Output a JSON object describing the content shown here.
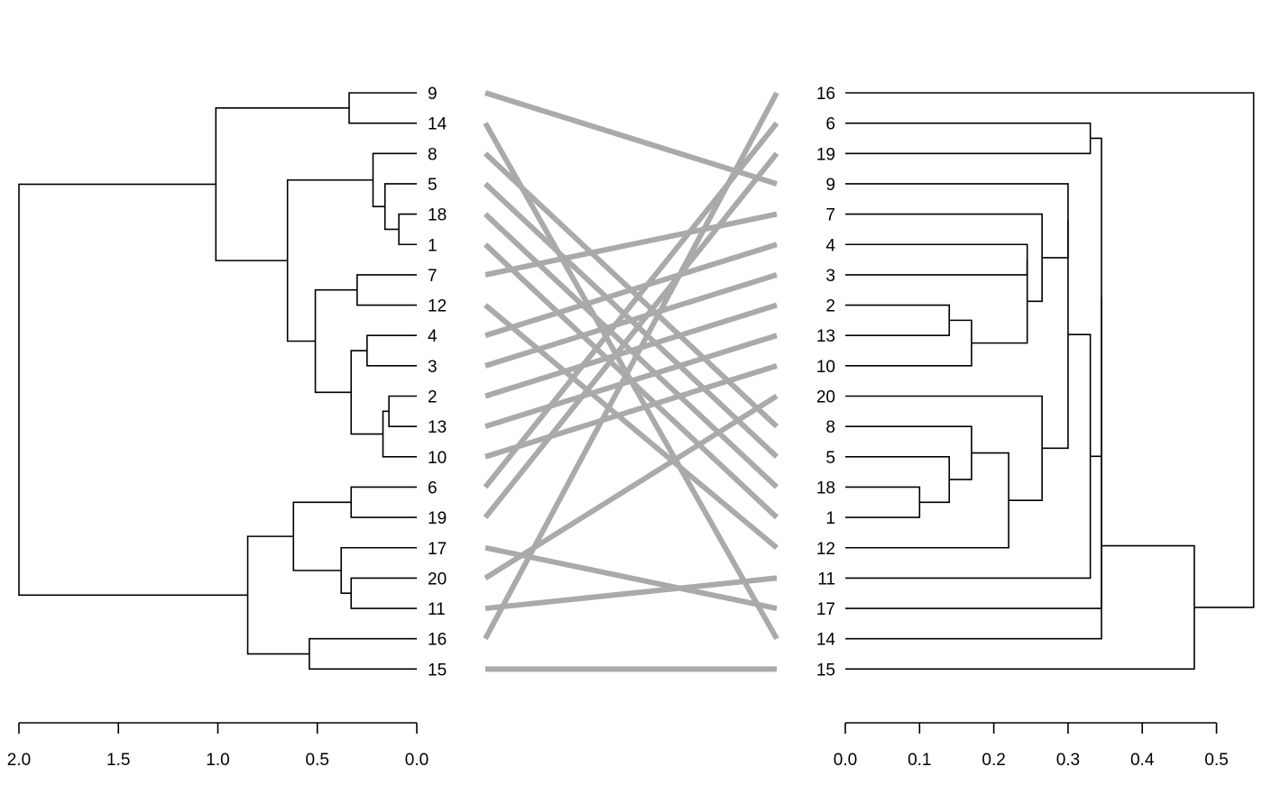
{
  "chart_data": [
    {
      "type": "dendrogram",
      "side": "left",
      "leaf_order": [
        "9",
        "14",
        "8",
        "5",
        "18",
        "1",
        "7",
        "12",
        "4",
        "3",
        "2",
        "13",
        "10",
        "6",
        "19",
        "17",
        "20",
        "11",
        "16",
        "15"
      ],
      "axis": {
        "range": [
          2.0,
          0.0
        ],
        "ticks": [
          2.0,
          1.5,
          1.0,
          0.5,
          0.0
        ],
        "tick_labels": [
          "2.0",
          "1.5",
          "1.0",
          "0.5",
          "0.0"
        ]
      },
      "merges": [
        {
          "children": [
            "18",
            "1"
          ],
          "height": 0.09
        },
        {
          "children": [
            "2",
            "13"
          ],
          "height": 0.14
        },
        {
          "children": [
            "5",
            "18|1"
          ],
          "height": 0.16
        },
        {
          "children": [
            "2|13",
            "10"
          ],
          "height": 0.17
        },
        {
          "children": [
            "8",
            "5|18|1"
          ],
          "height": 0.22
        },
        {
          "children": [
            "4",
            "3"
          ],
          "height": 0.25
        },
        {
          "children": [
            "7",
            "12"
          ],
          "height": 0.3
        },
        {
          "children": [
            "6",
            "19"
          ],
          "height": 0.33
        },
        {
          "children": [
            "20",
            "11"
          ],
          "height": 0.33
        },
        {
          "children": [
            "9",
            "14"
          ],
          "height": 0.34
        },
        {
          "children": [
            "4|3",
            "2|13|10"
          ],
          "height": 0.33
        },
        {
          "children": [
            "17",
            "20|11"
          ],
          "height": 0.38
        },
        {
          "children": [
            "7|12",
            "4|3|2|13|10"
          ],
          "height": 0.51
        },
        {
          "children": [
            "16",
            "15"
          ],
          "height": 0.54
        },
        {
          "children": [
            "6|19",
            "17|20|11"
          ],
          "height": 0.62
        },
        {
          "children": [
            "8|5|18|1",
            "7|12|4|3|2|13|10"
          ],
          "height": 0.65
        },
        {
          "children": [
            "6|19|17|20|11",
            "16|15"
          ],
          "height": 0.85
        },
        {
          "children": [
            "9|14",
            "8|5|18|1|7|12|4|3|2|13|10"
          ],
          "height": 1.01
        },
        {
          "children": [
            "9|14|8|5|18|1|7|12|4|3|2|13|10",
            "6|19|17|20|11|16|15"
          ],
          "height": 2.0
        }
      ]
    },
    {
      "type": "dendrogram",
      "side": "right",
      "leaf_order": [
        "16",
        "6",
        "19",
        "9",
        "7",
        "4",
        "3",
        "2",
        "13",
        "10",
        "20",
        "8",
        "5",
        "18",
        "1",
        "12",
        "11",
        "17",
        "14",
        "15"
      ],
      "axis": {
        "range": [
          0.0,
          0.55
        ],
        "ticks": [
          0.0,
          0.1,
          0.2,
          0.3,
          0.4,
          0.5
        ],
        "tick_labels": [
          "0.0",
          "0.1",
          "0.2",
          "0.3",
          "0.4",
          "0.5"
        ]
      },
      "merges": [
        {
          "children": [
            "18",
            "1"
          ],
          "height": 0.1
        },
        {
          "children": [
            "2",
            "13"
          ],
          "height": 0.14
        },
        {
          "children": [
            "5",
            "18|1"
          ],
          "height": 0.14
        },
        {
          "children": [
            "2|13",
            "10"
          ],
          "height": 0.17
        },
        {
          "children": [
            "8",
            "5|18|1"
          ],
          "height": 0.17
        },
        {
          "children": [
            "8|5|18|1",
            "12"
          ],
          "height": 0.22
        },
        {
          "children": [
            "4",
            "3"
          ],
          "height": 0.245
        },
        {
          "children": [
            "4|3",
            "2|13|10"
          ],
          "height": 0.245
        },
        {
          "children": [
            "20",
            "8|5|18|1|12"
          ],
          "height": 0.265
        },
        {
          "children": [
            "7",
            "4|3|2|13|10"
          ],
          "height": 0.265
        },
        {
          "children": [
            "9",
            "7|4|3|2|13|10"
          ],
          "height": 0.3
        },
        {
          "children": [
            "9|7|4|3|2|13|10",
            "20|8|5|18|1|12"
          ],
          "height": 0.3
        },
        {
          "children": [
            "6",
            "19"
          ],
          "height": 0.33
        },
        {
          "children": [
            "9|7|4|3|2|13|10|20|8|5|18|1|12",
            "11"
          ],
          "height": 0.33
        },
        {
          "children": [
            "6|19",
            "9|7|4|3|2|13|10|20|8|5|18|1|12|11"
          ],
          "height": 0.345
        },
        {
          "children": [
            "6|19|9|7|4|3|2|13|10|20|8|5|18|1|12|11",
            "17"
          ],
          "height": 0.345
        },
        {
          "children": [
            "6|19|9|7|4|3|2|13|10|20|8|5|18|1|12|11|17",
            "14"
          ],
          "height": 0.345
        },
        {
          "children": [
            "6|19|9|7|4|3|2|13|10|20|8|5|18|1|12|11|17|14",
            "15"
          ],
          "height": 0.47
        },
        {
          "children": [
            "16",
            "6|19|9|7|4|3|2|13|10|20|8|5|18|1|12|11|17|14|15"
          ],
          "height": 0.55
        }
      ]
    }
  ],
  "connector_color": "#aaaaaa",
  "line_color": "#000000"
}
